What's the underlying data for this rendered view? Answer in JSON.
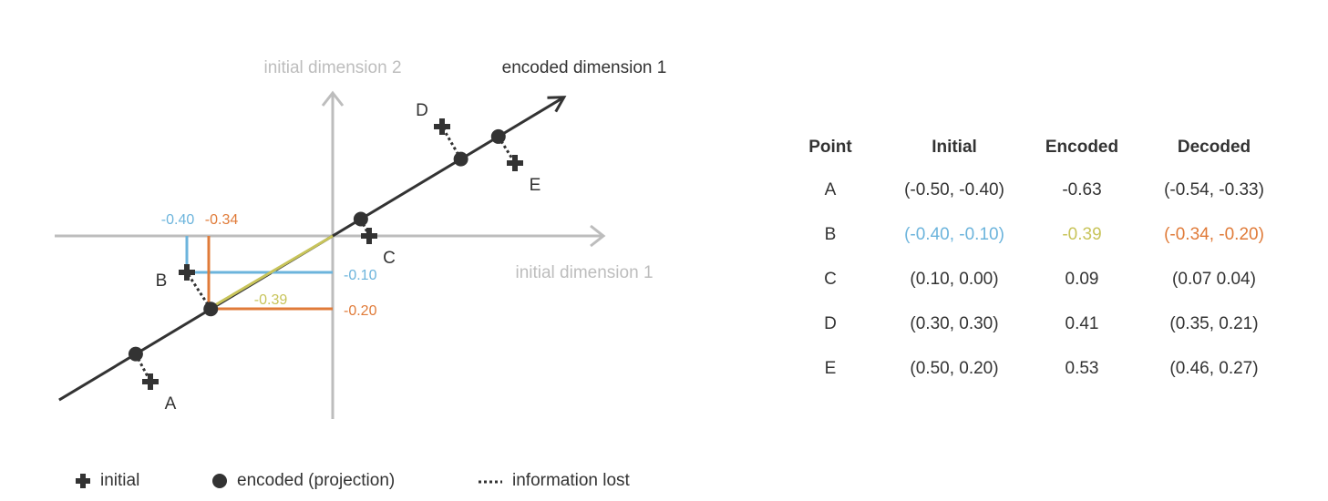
{
  "axes": {
    "initial_dim2": "initial dimension 2",
    "initial_dim1": "initial dimension 1",
    "encoded_dim1": "encoded dimension 1"
  },
  "points": [
    {
      "label": "A",
      "initial": [
        -0.5,
        -0.4
      ],
      "encoded": -0.63,
      "decoded": [
        -0.54,
        -0.33
      ]
    },
    {
      "label": "B",
      "initial": [
        -0.4,
        -0.1
      ],
      "encoded": -0.39,
      "decoded": [
        -0.34,
        -0.2
      ]
    },
    {
      "label": "C",
      "initial": [
        0.1,
        0.0
      ],
      "encoded": 0.09,
      "decoded": [
        0.07,
        0.04
      ]
    },
    {
      "label": "D",
      "initial": [
        0.3,
        0.3
      ],
      "encoded": 0.41,
      "decoded": [
        0.35,
        0.21
      ]
    },
    {
      "label": "E",
      "initial": [
        0.5,
        0.2
      ],
      "encoded": 0.53,
      "decoded": [
        0.46,
        0.27
      ]
    }
  ],
  "annotations": {
    "b_initial_x": "-0.40",
    "b_decoded_x": "-0.34",
    "b_initial_y": "-0.10",
    "b_decoded_y": "-0.20",
    "b_encoded": "-0.39"
  },
  "colors": {
    "initial": "#6cb4dc",
    "encoded": "#c8c45a",
    "decoded": "#e07b39",
    "axis": "#bdbdbd",
    "ink": "#333333"
  },
  "table": {
    "headers": [
      "Point",
      "Initial",
      "Encoded",
      "Decoded"
    ],
    "rows": [
      [
        "A",
        "(-0.50, -0.40)",
        "-0.63",
        "(-0.54, -0.33)"
      ],
      [
        "B",
        "(-0.40, -0.10)",
        "-0.39",
        "(-0.34, -0.20)"
      ],
      [
        "C",
        "(0.10, 0.00)",
        "0.09",
        "(0.07 0.04)"
      ],
      [
        "D",
        "(0.30, 0.30)",
        "0.41",
        "(0.35, 0.21)"
      ],
      [
        "E",
        "(0.50, 0.20)",
        "0.53",
        "(0.46, 0.27)"
      ]
    ],
    "highlight_row": 1
  },
  "legend": {
    "initial": "initial",
    "encoded": "encoded (projection)",
    "lost": "information lost"
  }
}
